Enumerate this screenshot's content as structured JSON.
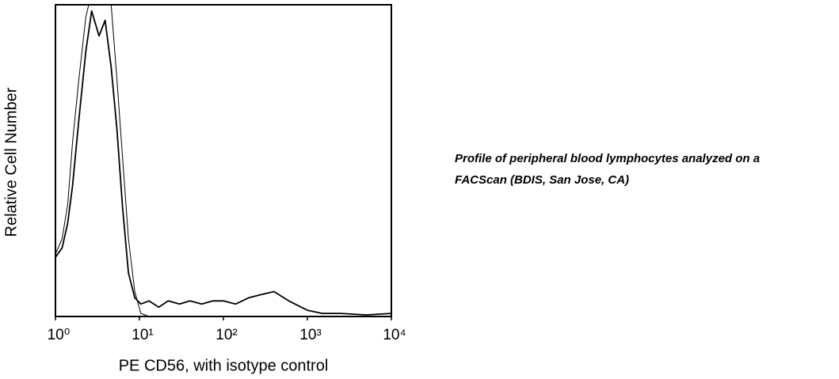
{
  "chart_data": {
    "type": "line",
    "log_x": true,
    "x_label": "PE CD56, with isotype control",
    "y_label": "Relative Cell Number",
    "caption": [
      "Profile of peripheral blood lymphocytes analyzed on a",
      "FACScan (BDIS, San Jose, CA)"
    ],
    "x": [
      1,
      1.2,
      1.4,
      1.6,
      1.9,
      2.3,
      2.7,
      3.3,
      3.9,
      4.6,
      5.4,
      6.3,
      7.4,
      8.8,
      10.4,
      13,
      17,
      22,
      30,
      40,
      55,
      75,
      100,
      140,
      200,
      280,
      400,
      600,
      1000,
      1500,
      2500,
      5000,
      10000
    ],
    "series": [
      {
        "color": "#000000",
        "values": [
          20,
          25,
          36,
          56,
          76,
          96,
          104,
          104,
          102,
          100,
          76,
          51,
          25,
          8,
          1,
          0,
          0,
          0,
          0,
          0,
          0,
          0,
          0,
          0,
          0,
          0,
          0,
          0,
          0,
          0,
          0,
          0,
          0
        ]
      },
      {
        "color": "#000000",
        "values": [
          19,
          22,
          30,
          42,
          63,
          85,
          98,
          90,
          95,
          80,
          60,
          35,
          14,
          6,
          4,
          5,
          3,
          5,
          4,
          5,
          4,
          5,
          5,
          4,
          6,
          7,
          8,
          5,
          2,
          1,
          1,
          0.5,
          1
        ]
      }
    ],
    "xlim": [
      1,
      10000
    ],
    "ylim": [
      0,
      100
    ],
    "xticks": [
      {
        "value": 1,
        "label": "10⁰"
      },
      {
        "value": 10,
        "label": "10¹"
      },
      {
        "value": 100,
        "label": "10²"
      },
      {
        "value": 1000,
        "label": "10³"
      },
      {
        "value": 10000,
        "label": "10⁴"
      }
    ]
  }
}
